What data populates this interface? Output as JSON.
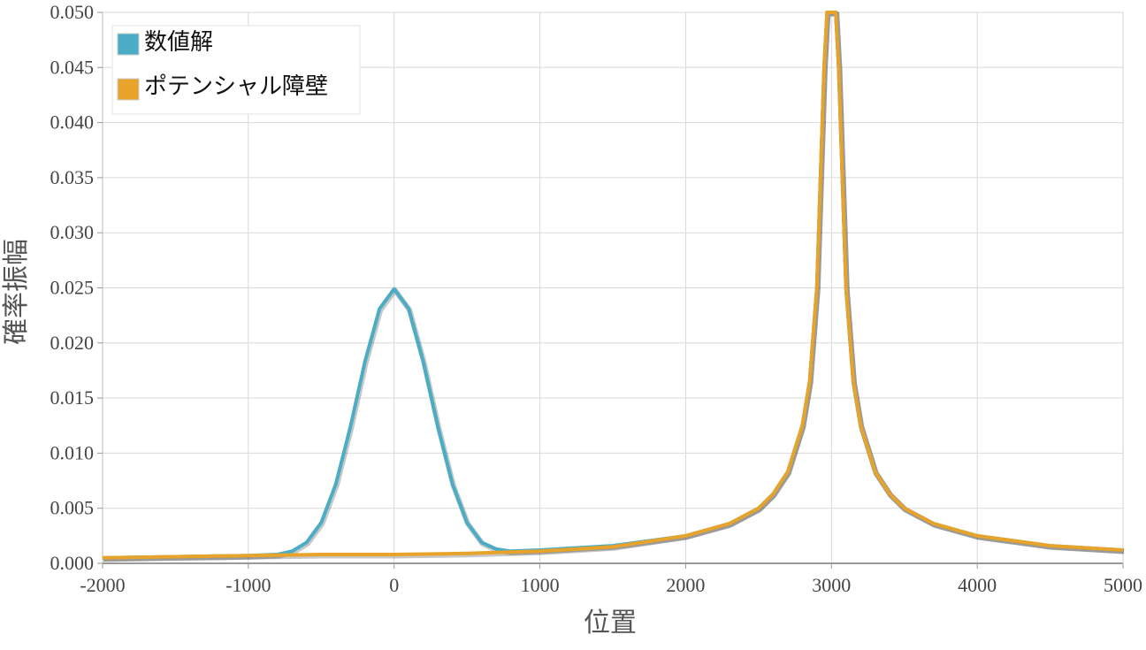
{
  "chart_data": {
    "type": "line",
    "xlabel": "位置",
    "ylabel": "確率振幅",
    "xlim": [
      -2000,
      5000
    ],
    "ylim": [
      0,
      0.05
    ],
    "x_ticks": [
      -2000,
      -1000,
      0,
      1000,
      2000,
      3000,
      4000,
      5000
    ],
    "x_tick_labels": [
      "-2000",
      "-1000",
      "0",
      "1000",
      "2000",
      "3000",
      "4000",
      "5000"
    ],
    "y_ticks": [
      0,
      0.005,
      0.01,
      0.015,
      0.02,
      0.025,
      0.03,
      0.035,
      0.04,
      0.045,
      0.05
    ],
    "y_tick_labels": [
      "0.000",
      "0.005",
      "0.010",
      "0.015",
      "0.020",
      "0.025",
      "0.030",
      "0.035",
      "0.040",
      "0.045",
      "0.050"
    ],
    "grid": true,
    "legend_position": "top-left",
    "series": [
      {
        "name": "数値解",
        "color": "#4bacc6",
        "x": [
          -2000,
          -1500,
          -1000,
          -800,
          -700,
          -600,
          -500,
          -400,
          -300,
          -200,
          -100,
          0,
          100,
          200,
          300,
          400,
          500,
          600,
          700,
          800,
          1000,
          1500,
          2000,
          2300,
          2500,
          2600,
          2700,
          2800,
          2850,
          2900,
          2950,
          2970,
          3000,
          3030,
          3050,
          3100,
          3150,
          3200,
          3300,
          3400,
          3500,
          3700,
          4000,
          4500,
          5000
        ],
        "y": [
          0.0005,
          0.0006,
          0.0007,
          0.0008,
          0.0011,
          0.0019,
          0.0037,
          0.0072,
          0.0124,
          0.0183,
          0.0231,
          0.0249,
          0.0231,
          0.0183,
          0.0124,
          0.0072,
          0.0037,
          0.0019,
          0.0013,
          0.0011,
          0.0012,
          0.0016,
          0.0025,
          0.0036,
          0.005,
          0.0063,
          0.0083,
          0.0125,
          0.0165,
          0.025,
          0.045,
          0.05,
          0.05,
          0.05,
          0.045,
          0.025,
          0.0165,
          0.0125,
          0.0083,
          0.0063,
          0.005,
          0.0036,
          0.0025,
          0.0016,
          0.0012
        ]
      },
      {
        "name": "ポテンシャル障壁",
        "color": "#e8a32b",
        "x": [
          -2000,
          -1500,
          -1000,
          -500,
          0,
          500,
          1000,
          1500,
          2000,
          2300,
          2500,
          2600,
          2700,
          2800,
          2850,
          2900,
          2950,
          2970,
          3000,
          3030,
          3050,
          3100,
          3150,
          3200,
          3300,
          3400,
          3500,
          3700,
          4000,
          4500,
          5000
        ],
        "y": [
          0.0005,
          0.0006,
          0.0007,
          0.0008,
          0.0008,
          0.0009,
          0.0011,
          0.0015,
          0.0025,
          0.0036,
          0.005,
          0.0063,
          0.0083,
          0.0125,
          0.0165,
          0.025,
          0.045,
          0.05,
          0.05,
          0.05,
          0.045,
          0.025,
          0.0165,
          0.0125,
          0.0083,
          0.0063,
          0.005,
          0.0036,
          0.0025,
          0.0016,
          0.0012
        ]
      }
    ]
  }
}
